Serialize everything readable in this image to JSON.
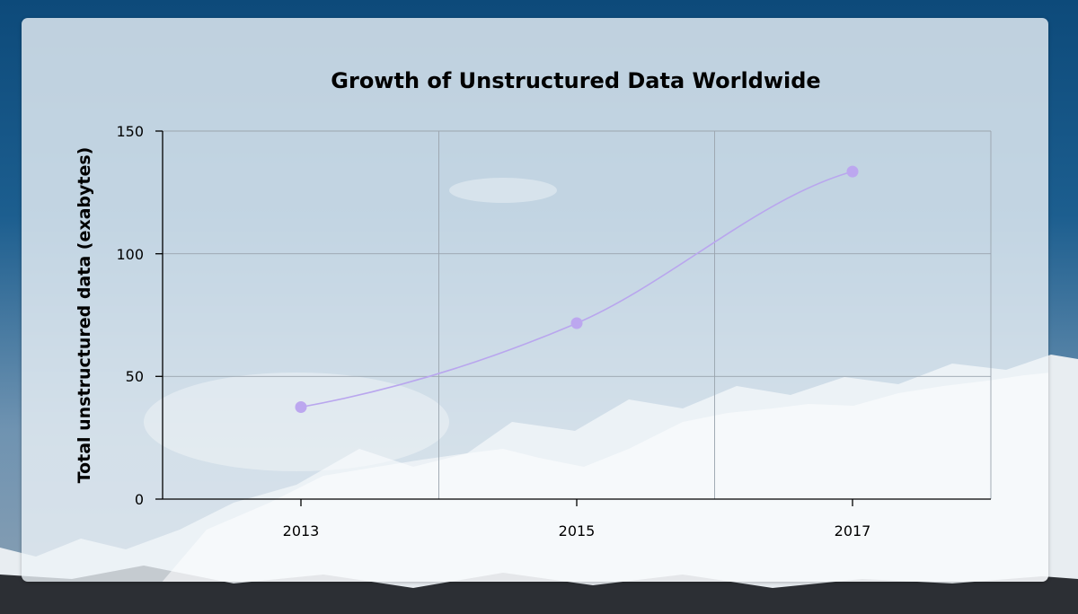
{
  "chart_data": {
    "type": "line",
    "title": "Growth of Unstructured Data Worldwide",
    "xlabel": "",
    "ylabel": "Total unstructured data (exabytes)",
    "categories": [
      "2013",
      "2015",
      "2017"
    ],
    "series": [
      {
        "values": [
          37.5,
          71.7,
          133.5
        ]
      }
    ],
    "ylim": [
      0,
      150
    ],
    "yticks": [
      "0",
      "50",
      "100",
      "150"
    ],
    "grid": true,
    "curve": "smooth",
    "colors": {
      "line": "#b9a6ee",
      "marker": "#bca7ef"
    }
  }
}
